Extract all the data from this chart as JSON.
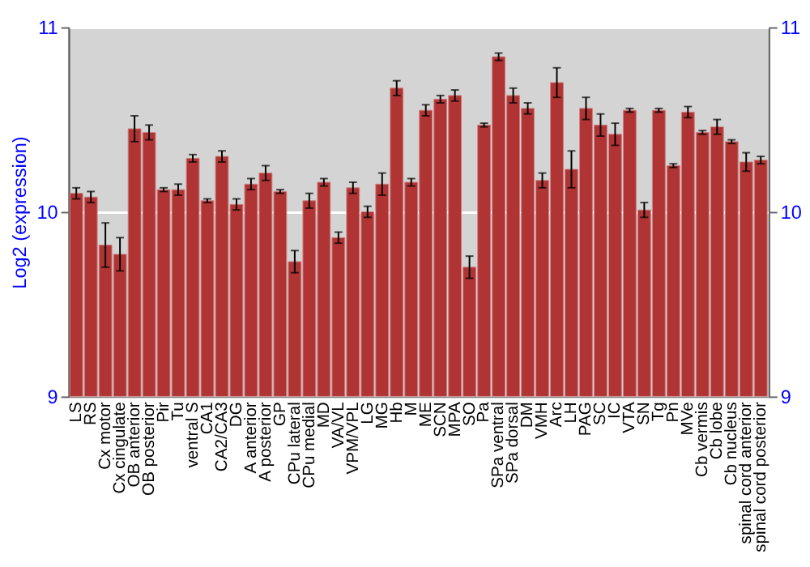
{
  "chart_data": {
    "type": "bar",
    "ylabel": "Log2 (expression)",
    "categories": [
      "LS",
      "RS",
      "Cx motor",
      "Cx cingulate",
      "OB anterior",
      "OB posterior",
      "Pir",
      "Tu",
      "ventral S",
      "CA1",
      "CA2/CA3",
      "DG",
      "A anterior",
      "A posterior",
      "GP",
      "CPu lateral",
      "CPu medial",
      "MD",
      "VA/VL",
      "VPM/VPL",
      "LG",
      "MG",
      "Hb",
      "M",
      "ME",
      "SCN",
      "MPA",
      "SO",
      "Pa",
      "SPa ventral",
      "SPa dorsal",
      "DM",
      "VMH",
      "Arc",
      "LH",
      "PAG",
      "SC",
      "IC",
      "VTA",
      "SN",
      "Tg",
      "Pn",
      "MVe",
      "Cb vermis",
      "Cb lobe",
      "Cb nucleus",
      "spinal cord anterior",
      "spinal cord posterior"
    ],
    "values": [
      10.1,
      10.08,
      9.82,
      9.77,
      10.45,
      10.43,
      10.12,
      10.12,
      10.29,
      10.06,
      10.3,
      10.04,
      10.15,
      10.21,
      10.11,
      9.73,
      10.06,
      10.16,
      9.86,
      10.13,
      10.0,
      10.15,
      10.67,
      10.16,
      10.55,
      10.61,
      10.63,
      9.7,
      10.47,
      10.84,
      10.63,
      10.56,
      10.17,
      10.7,
      10.23,
      10.56,
      10.47,
      10.42,
      10.55,
      10.01,
      10.55,
      10.25,
      10.54,
      10.43,
      10.46,
      10.38,
      10.27,
      10.28
    ],
    "errors": [
      0.03,
      0.03,
      0.12,
      0.09,
      0.07,
      0.04,
      0.01,
      0.03,
      0.02,
      0.01,
      0.03,
      0.03,
      0.03,
      0.04,
      0.01,
      0.06,
      0.04,
      0.02,
      0.03,
      0.03,
      0.03,
      0.06,
      0.04,
      0.02,
      0.03,
      0.02,
      0.03,
      0.06,
      0.01,
      0.02,
      0.04,
      0.03,
      0.04,
      0.08,
      0.1,
      0.06,
      0.06,
      0.06,
      0.01,
      0.04,
      0.01,
      0.01,
      0.03,
      0.01,
      0.04,
      0.01,
      0.05,
      0.02
    ],
    "color": "#b03434",
    "ylim": [
      9,
      11
    ],
    "yticks": [
      9,
      10,
      11
    ],
    "y2lim": [
      9,
      11
    ],
    "y2ticks": [
      9,
      10,
      11
    ],
    "grid": "y"
  }
}
